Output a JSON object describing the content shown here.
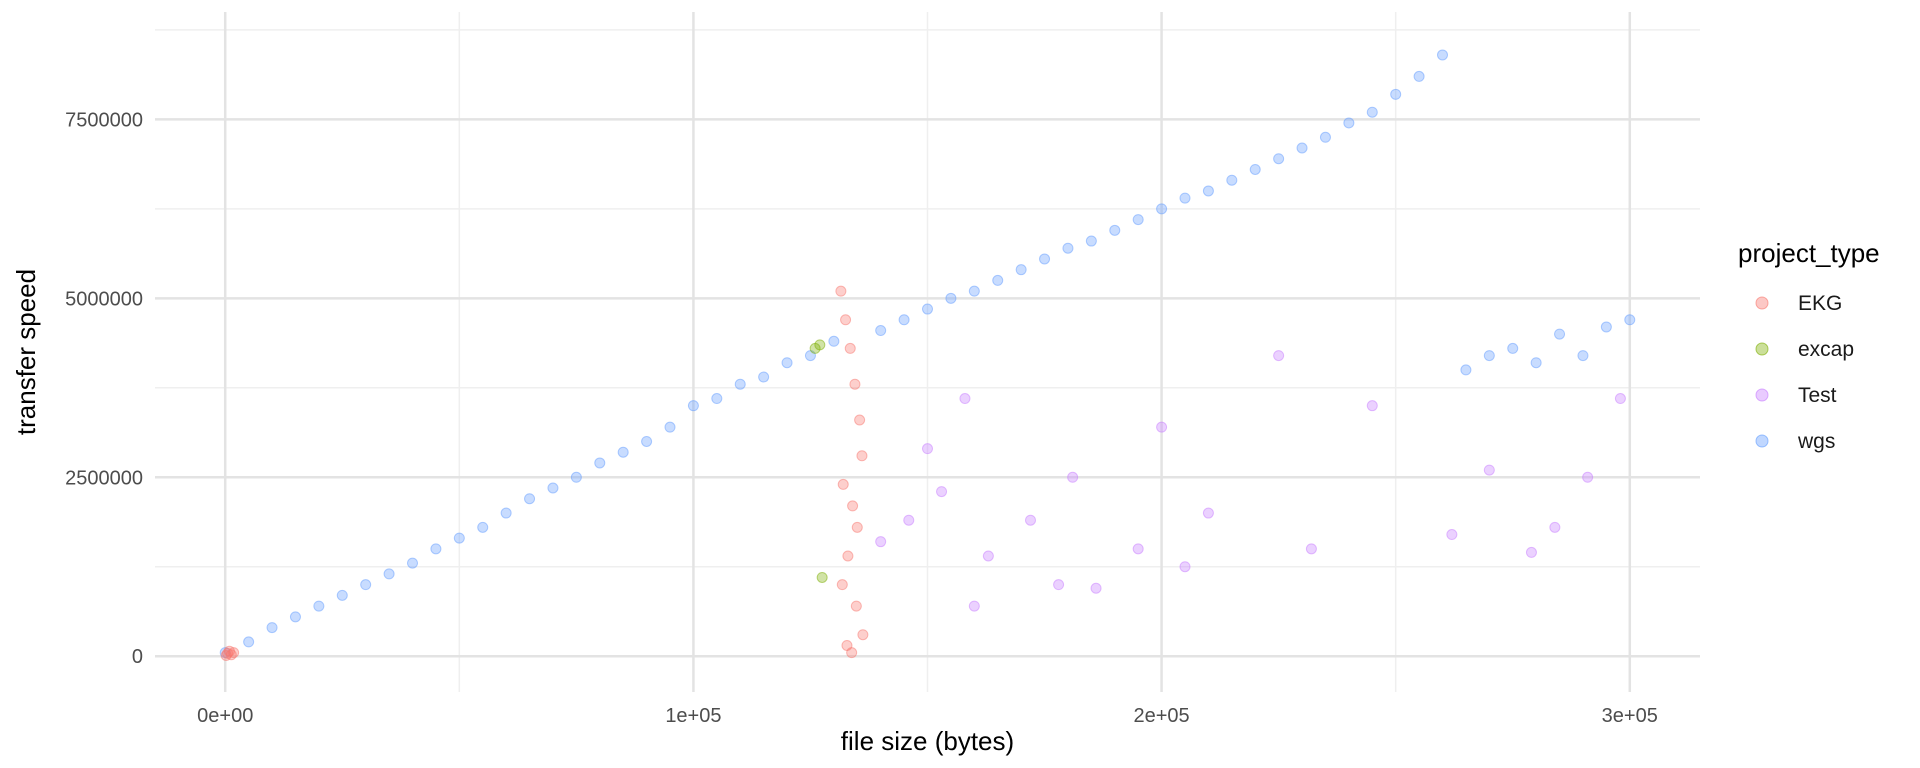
{
  "chart_data": {
    "type": "scatter",
    "title": "",
    "xlabel": "file size (bytes)",
    "ylabel": "transfer speed",
    "xlim": [
      -15000,
      315000
    ],
    "ylim": [
      -500000,
      9000000
    ],
    "x_ticks": [
      0,
      100000,
      200000,
      300000
    ],
    "x_tick_labels": [
      "0e+00",
      "1e+05",
      "2e+05",
      "3e+05"
    ],
    "y_ticks": [
      0,
      2500000,
      5000000,
      7500000
    ],
    "y_tick_labels": [
      "0",
      "2500000",
      "5000000",
      "7500000"
    ],
    "grid": true,
    "legend_title": "project_type",
    "legend_position": "right",
    "series": [
      {
        "name": "EKG",
        "color": "#F8766D",
        "x": [
          200,
          500,
          900,
          1300,
          1800,
          131500,
          132500,
          133500,
          134500,
          135500,
          136000,
          132000,
          134000,
          135000,
          133000,
          131800,
          134800,
          136200,
          132800,
          133800
        ],
        "y": [
          10000,
          40000,
          70000,
          20000,
          50000,
          5100000,
          4700000,
          4300000,
          3800000,
          3300000,
          2800000,
          2400000,
          2100000,
          1800000,
          1400000,
          1000000,
          700000,
          300000,
          150000,
          50000
        ]
      },
      {
        "name": "excap",
        "color": "#7CAE00",
        "x": [
          126000,
          127000,
          127500
        ],
        "y": [
          4300000,
          4350000,
          1100000
        ]
      },
      {
        "name": "Test",
        "color": "#C77CFF",
        "x": [
          150000,
          153000,
          158000,
          163000,
          172000,
          181000,
          186000,
          195000,
          200000,
          210000,
          225000,
          232000,
          245000,
          262000,
          270000,
          279000,
          284000,
          291000,
          298000,
          140000,
          146000,
          160000,
          178000,
          205000
        ],
        "y": [
          2900000,
          2300000,
          3600000,
          1400000,
          1900000,
          2500000,
          950000,
          1500000,
          3200000,
          2000000,
          4200000,
          1500000,
          3500000,
          1700000,
          2600000,
          1450000,
          1800000,
          2500000,
          3600000,
          1600000,
          1900000,
          700000,
          1000000,
          1250000
        ]
      },
      {
        "name": "wgs",
        "color": "#619CFF",
        "x": [
          0,
          5000,
          10000,
          15000,
          20000,
          25000,
          30000,
          35000,
          40000,
          45000,
          50000,
          55000,
          60000,
          65000,
          70000,
          75000,
          80000,
          85000,
          90000,
          95000,
          100000,
          105000,
          110000,
          115000,
          120000,
          125000,
          130000,
          140000,
          145000,
          150000,
          155000,
          160000,
          165000,
          170000,
          175000,
          180000,
          185000,
          190000,
          195000,
          200000,
          205000,
          210000,
          215000,
          220000,
          225000,
          230000,
          235000,
          240000,
          245000,
          250000,
          255000,
          260000,
          265000,
          270000,
          275000,
          280000,
          285000,
          290000,
          295000,
          300000
        ],
        "y": [
          50000,
          200000,
          400000,
          550000,
          700000,
          850000,
          1000000,
          1150000,
          1300000,
          1500000,
          1650000,
          1800000,
          2000000,
          2200000,
          2350000,
          2500000,
          2700000,
          2850000,
          3000000,
          3200000,
          3500000,
          3600000,
          3800000,
          3900000,
          4100000,
          4200000,
          4400000,
          4550000,
          4700000,
          4850000,
          5000000,
          5100000,
          5250000,
          5400000,
          5550000,
          5700000,
          5800000,
          5950000,
          6100000,
          6250000,
          6400000,
          6500000,
          6650000,
          6800000,
          6950000,
          7100000,
          7250000,
          7450000,
          7600000,
          7850000,
          8100000,
          8400000,
          4000000,
          4200000,
          4300000,
          4100000,
          4500000,
          4200000,
          4600000,
          4700000
        ]
      }
    ]
  }
}
